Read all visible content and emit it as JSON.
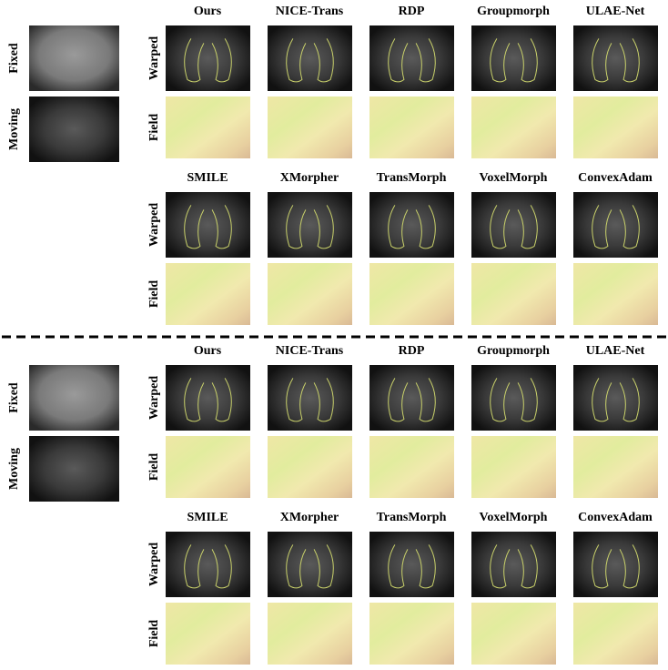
{
  "panels": [
    {
      "inputs": [
        "Fixed",
        "Moving"
      ],
      "groups": [
        {
          "methods": [
            "Ours",
            "NICE-Trans",
            "RDP",
            "Groupmorph",
            "ULAE-Net"
          ],
          "rows": [
            "Warped",
            "Field"
          ]
        },
        {
          "methods": [
            "SMILE",
            "XMorpher",
            "TransMorph",
            "VoxelMorph",
            "ConvexAdam"
          ],
          "rows": [
            "Warped",
            "Field"
          ]
        }
      ]
    },
    {
      "inputs": [
        "Fixed",
        "Moving"
      ],
      "groups": [
        {
          "methods": [
            "Ours",
            "NICE-Trans",
            "RDP",
            "Groupmorph",
            "ULAE-Net"
          ],
          "rows": [
            "Warped",
            "Field"
          ]
        },
        {
          "methods": [
            "SMILE",
            "XMorpher",
            "TransMorph",
            "VoxelMorph",
            "ConvexAdam"
          ],
          "rows": [
            "Warped",
            "Field"
          ]
        }
      ]
    }
  ]
}
